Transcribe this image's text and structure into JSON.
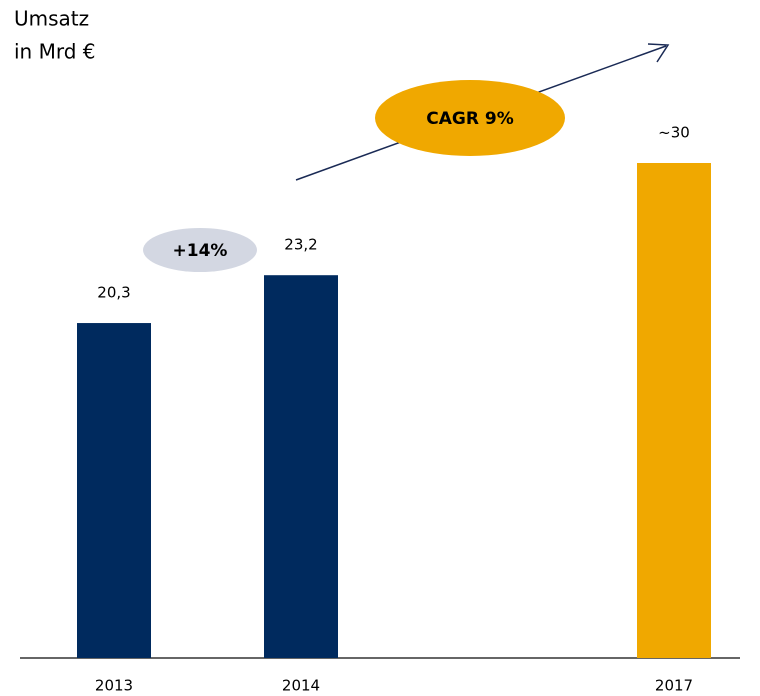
{
  "chart_data": {
    "type": "bar",
    "title": "Umsatz",
    "subtitle": "in Mrd €",
    "categories": [
      "2013",
      "2014",
      "2017"
    ],
    "values": [
      20.3,
      23.2,
      30
    ],
    "value_labels": [
      "20,3",
      "23,2",
      "~30"
    ],
    "colors": [
      "#002a5e",
      "#002a5e",
      "#f0a800"
    ],
    "annotations": [
      "+14%",
      "CAGR 9%"
    ]
  }
}
